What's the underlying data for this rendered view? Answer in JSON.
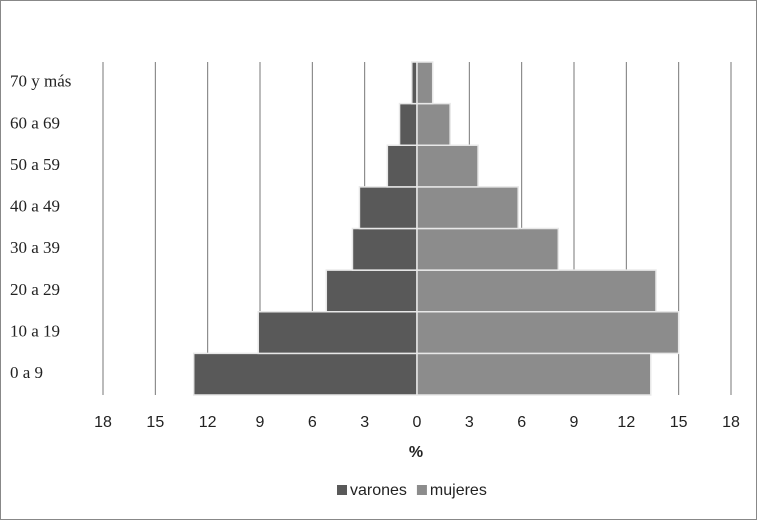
{
  "chart_data": {
    "type": "pyramid",
    "categories": [
      "0 a 9",
      "10 a 19",
      "20 a 29",
      "30 a 39",
      "40 a 49",
      "50 a 59",
      "60 a 69",
      "70 y más"
    ],
    "series": [
      {
        "name": "varones",
        "color": "#595959",
        "values": [
          -12.8,
          -9.1,
          -5.2,
          -3.7,
          -3.3,
          -1.7,
          -1.0,
          -0.3
        ]
      },
      {
        "name": "mujeres",
        "color": "#8c8c8c",
        "values": [
          13.4,
          15.0,
          13.7,
          8.1,
          5.8,
          3.5,
          1.9,
          0.9
        ]
      }
    ],
    "x_label": "%",
    "xlim": [
      -18,
      18
    ],
    "xticks": [
      {
        "value": -18,
        "label": "18"
      },
      {
        "value": -15,
        "label": "15"
      },
      {
        "value": -12,
        "label": "12"
      },
      {
        "value": -9,
        "label": "9"
      },
      {
        "value": -6,
        "label": "6"
      },
      {
        "value": -3,
        "label": "3"
      },
      0,
      3,
      6,
      9,
      12,
      15,
      18
    ],
    "grid": true,
    "legend": "bottom"
  }
}
